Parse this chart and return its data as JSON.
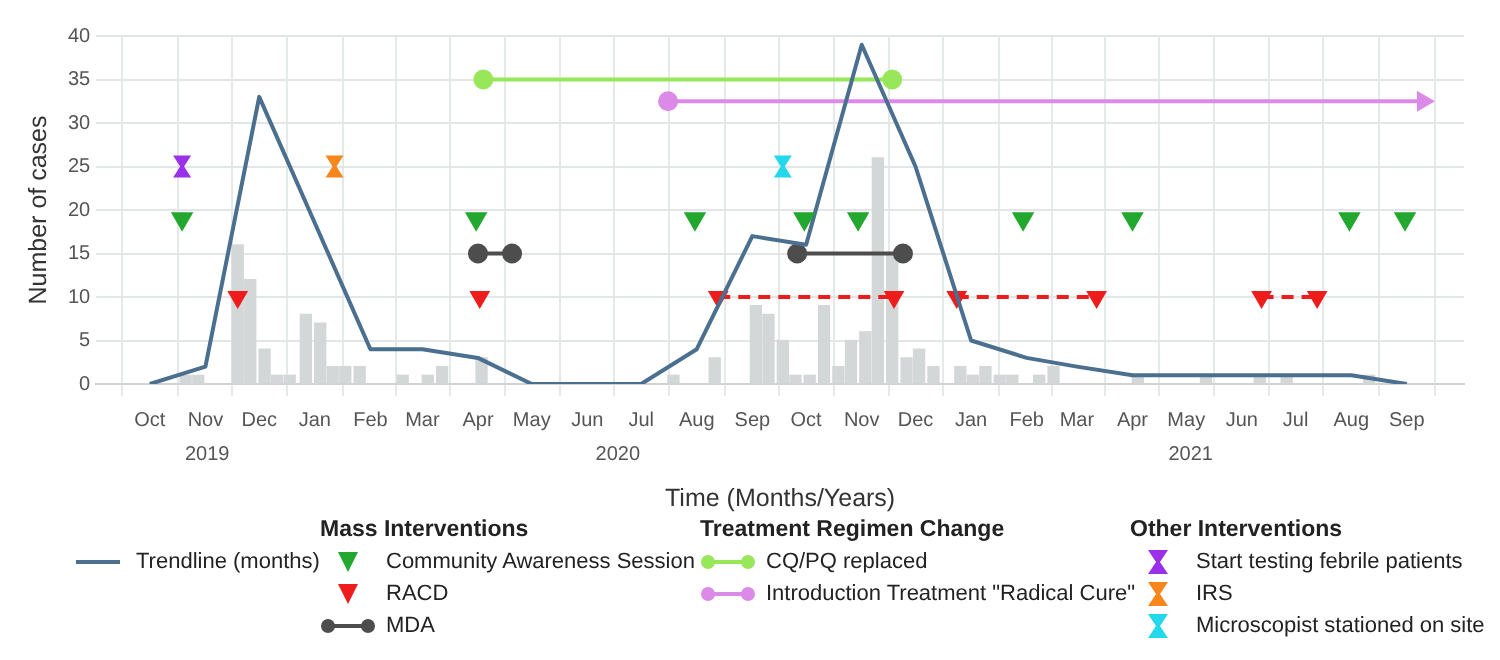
{
  "chart_data": {
    "type": "bar",
    "xlabel": "Time (Months/Years)",
    "ylabel": "Number of cases",
    "ylim": [
      0,
      40
    ],
    "yticks": [
      0,
      5,
      10,
      15,
      20,
      25,
      30,
      35,
      40
    ],
    "xlim": [
      "2019-10-01",
      "2021-10-01"
    ],
    "xticks": [
      {
        "value": "2019-10-15",
        "label": "Oct"
      },
      {
        "value": "2019-11-15",
        "label": "Nov"
      },
      {
        "value": "2019-12-15",
        "label": "Dec"
      },
      {
        "value": "2020-01-15",
        "label": "Jan"
      },
      {
        "value": "2020-02-15",
        "label": "Feb"
      },
      {
        "value": "2020-03-15",
        "label": "Mar"
      },
      {
        "value": "2020-04-15",
        "label": "Apr"
      },
      {
        "value": "2020-05-15",
        "label": "May"
      },
      {
        "value": "2020-06-15",
        "label": "Jun"
      },
      {
        "value": "2020-07-15",
        "label": "Jul"
      },
      {
        "value": "2020-08-15",
        "label": "Aug"
      },
      {
        "value": "2020-09-15",
        "label": "Sep"
      },
      {
        "value": "2020-10-15",
        "label": "Oct"
      },
      {
        "value": "2020-11-15",
        "label": "Nov"
      },
      {
        "value": "2020-12-15",
        "label": "Dec"
      },
      {
        "value": "2021-01-15",
        "label": "Jan"
      },
      {
        "value": "2021-02-15",
        "label": "Feb"
      },
      {
        "value": "2021-03-15",
        "label": "Mar"
      },
      {
        "value": "2021-04-15",
        "label": "Apr"
      },
      {
        "value": "2021-05-15",
        "label": "May"
      },
      {
        "value": "2021-06-15",
        "label": "Jun"
      },
      {
        "value": "2021-07-15",
        "label": "Jul"
      },
      {
        "value": "2021-08-15",
        "label": "Aug"
      },
      {
        "value": "2021-09-15",
        "label": "Sep"
      }
    ],
    "annotations": [
      "2019",
      "2020",
      "2021"
    ],
    "grid": true,
    "legend": "bottom",
    "legend_title": [
      "Mass Interventions",
      "Treatment Regimen Change",
      "Other Interventions"
    ],
    "series": [
      {
        "color": "#d4d7d7",
        "x": [
          "2019-11-04",
          "2019-11-11",
          "2019-12-03",
          "2019-12-10",
          "2019-12-18",
          "2019-12-25",
          "2020-01-01",
          "2020-01-10",
          "2020-01-18",
          "2020-01-25",
          "2020-02-01",
          "2020-02-09",
          "2020-03-04",
          "2020-03-18",
          "2020-03-26",
          "2020-04-17",
          "2020-08-02",
          "2020-08-25",
          "2020-09-17",
          "2020-09-24",
          "2020-10-02",
          "2020-10-09",
          "2020-10-17",
          "2020-10-25",
          "2020-11-02",
          "2020-11-09",
          "2020-11-17",
          "2020-11-24",
          "2020-12-02",
          "2020-12-10",
          "2020-12-17",
          "2020-12-25",
          "2021-01-09",
          "2021-01-16",
          "2021-01-23",
          "2021-01-31",
          "2021-02-07",
          "2021-02-22",
          "2021-03-02",
          "2021-04-18",
          "2021-05-26",
          "2021-06-25",
          "2021-07-10",
          "2021-08-25"
        ],
        "values": [
          1,
          1,
          16,
          12,
          4,
          1,
          1,
          8,
          7,
          2,
          2,
          2,
          1,
          1,
          2,
          3,
          1,
          3,
          9,
          8,
          5,
          1,
          1,
          9,
          2,
          5,
          6,
          26,
          15,
          3,
          4,
          2,
          2,
          1,
          2,
          1,
          1,
          1,
          2,
          1,
          1,
          1,
          1,
          1
        ]
      },
      {
        "type": "line",
        "name": "Trendline (months)",
        "color": "#4a6f8f",
        "marker": "none",
        "line_style": "solid",
        "x": [
          "2019-10-15",
          "2019-11-15",
          "2019-12-15",
          "2020-01-15",
          "2020-02-15",
          "2020-03-15",
          "2020-04-15",
          "2020-05-15",
          "2020-06-15",
          "2020-07-15",
          "2020-08-15",
          "2020-09-15",
          "2020-10-15",
          "2020-11-15",
          "2020-12-15",
          "2021-01-15",
          "2021-02-15",
          "2021-03-15",
          "2021-04-15",
          "2021-05-15",
          "2021-06-15",
          "2021-07-15",
          "2021-08-15",
          "2021-09-15"
        ],
        "values": [
          0,
          2,
          33,
          18.5,
          4,
          4,
          3,
          0,
          0,
          0,
          4,
          17,
          16,
          39,
          25,
          5,
          3,
          2,
          1,
          1,
          1,
          1,
          1,
          0
        ]
      },
      {
        "type": "scatter",
        "name": "Community Awareness Session",
        "color": "#22a82e",
        "marker": "triangle",
        "x": [
          "2019-11-02",
          "2020-04-14",
          "2020-08-14",
          "2020-10-14",
          "2020-11-13",
          "2021-02-13",
          "2021-04-15",
          "2021-08-14",
          "2021-09-14"
        ],
        "values": [
          19,
          19,
          19,
          19,
          19,
          19,
          19,
          19,
          19
        ]
      },
      {
        "type": "line",
        "name": "RACD",
        "color": "#ee1c1c",
        "marker": "triangle",
        "line_style": "dashed",
        "x": [
          "2019-12-03",
          "2020-02-07",
          "2020-04-16",
          "2020-06-20",
          "2020-08-27",
          "2020-12-03",
          "2020-12-20",
          "2021-01-07",
          "2021-03-26",
          "2021-05-15",
          "2021-06-26",
          "2021-07-27"
        ],
        "values": [
          10,
          null,
          10,
          null,
          10,
          10,
          null,
          10,
          10,
          null,
          10,
          10
        ]
      },
      {
        "type": "line",
        "name": "MDA",
        "color": "#4d4d4d",
        "marker": "circle",
        "line_style": "solid",
        "x": [
          "2020-04-15",
          "2020-05-04",
          "2020-07-15",
          "2020-10-10",
          "2020-12-08"
        ],
        "values": [
          15,
          15,
          null,
          15,
          15
        ]
      },
      {
        "type": "line",
        "name": "CQ/PQ replaced",
        "color": "#98e65a",
        "marker": "circle",
        "line_style": "solid",
        "x": [
          "2020-04-18",
          "2020-12-02"
        ],
        "values": [
          35,
          35
        ]
      },
      {
        "type": "line",
        "name": "Introduction Treatment \"Radical Cure\"",
        "color": "#dc8ae8",
        "marker": [
          "circle",
          "triangle_right"
        ],
        "line_style": "solid",
        "x": [
          "2020-07-30",
          "2021-09-24"
        ],
        "values": [
          32.5,
          32.5
        ]
      },
      {
        "type": "scatter",
        "name": "Start testing febrile patients",
        "color": "#9b30ea",
        "x": [
          "2019-11-02"
        ],
        "values": [
          25
        ]
      },
      {
        "type": "scatter",
        "name": "IRS",
        "color": "#f7861c",
        "x": [
          "2020-01-26"
        ],
        "values": [
          25
        ]
      },
      {
        "type": "scatter",
        "name": "Microscopist stationed on site",
        "color": "#22d8ea",
        "x": [
          "2020-10-02"
        ],
        "values": [
          25
        ]
      }
    ]
  }
}
